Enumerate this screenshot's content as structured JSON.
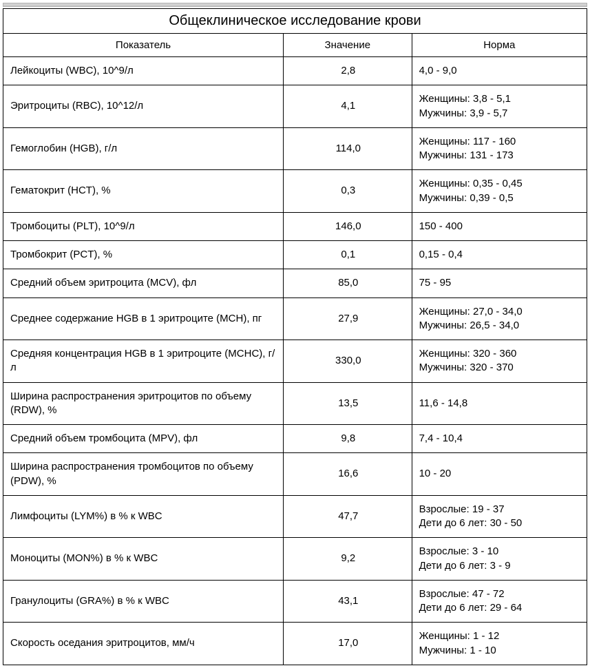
{
  "title": "Общеклиническое исследование крови",
  "headers": {
    "param": "Показатель",
    "value": "Значение",
    "norm": "Норма"
  },
  "rows": [
    {
      "param": "Лейкоциты (WBC), 10^9/л",
      "value": "2,8",
      "norm": [
        "4,0 - 9,0"
      ]
    },
    {
      "param": "Эритроциты (RBC), 10^12/л",
      "value": "4,1",
      "norm": [
        "Женщины: 3,8 - 5,1",
        "Мужчины: 3,9 - 5,7"
      ]
    },
    {
      "param": "Гемоглобин (HGB), г/л",
      "value": "114,0",
      "norm": [
        "Женщины: 117 - 160",
        "Мужчины: 131 - 173"
      ]
    },
    {
      "param": "Гематокрит (HCT), %",
      "value": "0,3",
      "norm": [
        "Женщины: 0,35 - 0,45",
        "Мужчины: 0,39 - 0,5"
      ]
    },
    {
      "param": "Тромбоциты (PLT), 10^9/л",
      "value": "146,0",
      "norm": [
        "150 - 400"
      ]
    },
    {
      "param": "Тромбокрит (PCT), %",
      "value": "0,1",
      "norm": [
        "0,15 - 0,4"
      ]
    },
    {
      "param": "Средний объем эритроцита (MCV), фл",
      "value": "85,0",
      "norm": [
        "75 - 95"
      ]
    },
    {
      "param": "Среднее содержание HGB в 1 эритроците (MCH), пг",
      "value": "27,9",
      "norm": [
        "Женщины: 27,0 - 34,0",
        "Мужчины: 26,5 - 34,0"
      ]
    },
    {
      "param": "Средняя концентрация HGB в 1 эритроците (MCHC), г/л",
      "value": "330,0",
      "norm": [
        "Женщины: 320 - 360",
        "Мужчины: 320 - 370"
      ]
    },
    {
      "param": "Ширина распространения эритроцитов по объему (RDW), %",
      "value": "13,5",
      "norm": [
        "11,6 - 14,8"
      ]
    },
    {
      "param": "Средний объем тромбоцита (MPV), фл",
      "value": "9,8",
      "norm": [
        "7,4 - 10,4"
      ]
    },
    {
      "param": "Ширина распространения тромбоцитов по объему (PDW), %",
      "value": "16,6",
      "norm": [
        "10 - 20"
      ]
    },
    {
      "param": "Лимфоциты (LYM%) в % к WBC",
      "value": "47,7",
      "norm": [
        "Взрослые: 19 - 37",
        "Дети до 6 лет: 30 - 50"
      ]
    },
    {
      "param": "Моноциты (MON%) в % к WBC",
      "value": "9,2",
      "norm": [
        "Взрослые: 3 - 10",
        "Дети до 6 лет: 3 - 9"
      ]
    },
    {
      "param": "Гранулоциты (GRA%) в % к WBC",
      "value": "43,1",
      "norm": [
        "Взрослые: 47 - 72",
        "Дети до 6 лет: 29 - 64"
      ]
    },
    {
      "param": "Скорость оседания эритроцитов, мм/ч",
      "value": "17,0",
      "norm": [
        "Женщины: 1 - 12",
        "Мужчины: 1 - 10"
      ]
    }
  ],
  "styling": {
    "font_family": "Arial",
    "title_fontsize": 20,
    "header_fontsize": 15,
    "cell_fontsize": 15,
    "border_color": "#000000",
    "text_color": "#000000",
    "background_color": "#ffffff",
    "col_widths_pct": [
      48,
      22,
      30
    ]
  }
}
